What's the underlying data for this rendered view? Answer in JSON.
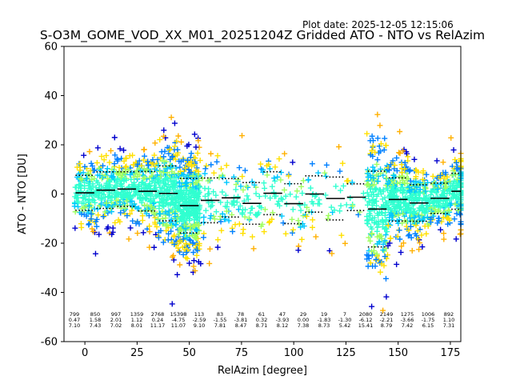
{
  "header": {
    "plot_date": "Plot date: 2025-12-05 12:15:06",
    "title": "S-O3M_GOME_VOD_XX_M01_20251204Z Gridded ATO - NTO vs RelAzim"
  },
  "colors": {
    "scatter_palette": [
      "#0000cd",
      "#0080ff",
      "#00c8ff",
      "#30ffd0",
      "#a0ff60",
      "#ffe000",
      "#ffb000"
    ],
    "mean_line": "#000000",
    "std_line": "#000000"
  },
  "chart_data": {
    "type": "scatter",
    "title": "S-O3M_GOME_VOD_XX_M01_20251204Z Gridded ATO - NTO vs RelAzim",
    "xlabel": "RelAzim [degree]",
    "ylabel": "ATO - NTO [DU]",
    "xlim": [
      -10,
      180
    ],
    "ylim": [
      -60,
      60
    ],
    "xticks": [
      0,
      25,
      50,
      75,
      100,
      125,
      150,
      175
    ],
    "yticks": [
      -60,
      -40,
      -20,
      0,
      20,
      40,
      60
    ],
    "grid": false,
    "bins": [
      {
        "x": 0,
        "count": "799",
        "mean": "0.47",
        "std": "7.10"
      },
      {
        "x": 10,
        "count": "850",
        "mean": "1.58",
        "std": "7.43"
      },
      {
        "x": 20,
        "count": "997",
        "mean": "2.01",
        "std": "7.02"
      },
      {
        "x": 30,
        "count": "1359",
        "mean": "1.12",
        "std": "8.01"
      },
      {
        "x": 40,
        "count": "2768",
        "mean": "0.24",
        "std": "11.17"
      },
      {
        "x": 50,
        "count": "15398",
        "mean": "-4.75",
        "std": "11.07"
      },
      {
        "x": 60,
        "count": "113",
        "mean": "-2.59",
        "std": "9.10"
      },
      {
        "x": 70,
        "count": "83",
        "mean": "-1.55",
        "std": "7.81"
      },
      {
        "x": 80,
        "count": "78",
        "mean": "-3.81",
        "std": "8.47"
      },
      {
        "x": 90,
        "count": "61",
        "mean": "0.32",
        "std": "8.71"
      },
      {
        "x": 100,
        "count": "47",
        "mean": "-3.93",
        "std": "8.12"
      },
      {
        "x": 110,
        "count": "29",
        "mean": "0.00",
        "std": "7.38"
      },
      {
        "x": 120,
        "count": "19",
        "mean": "-1.83",
        "std": "8.73"
      },
      {
        "x": 130,
        "count": "7",
        "mean": "-1.30",
        "std": "5.42"
      },
      {
        "x": 140,
        "count": "2080",
        "mean": "-6.12",
        "std": "15.41"
      },
      {
        "x": 150,
        "count": "2149",
        "mean": "-2.21",
        "std": "8.79"
      },
      {
        "x": 160,
        "count": "1275",
        "mean": "-3.66",
        "std": "7.42"
      },
      {
        "x": 170,
        "count": "1006",
        "mean": "-1.75",
        "std": "6.15"
      },
      {
        "x": 180,
        "count": "892",
        "mean": "1.10",
        "std": "7.31"
      }
    ]
  }
}
